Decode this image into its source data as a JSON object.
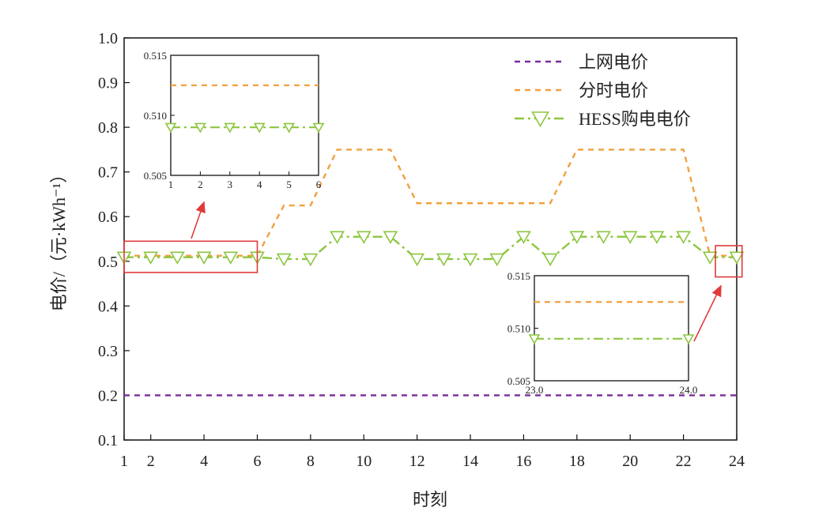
{
  "chart_data": {
    "type": "line",
    "xlabel": "时刻",
    "ylabel": "电价/（元·kWh⁻¹）",
    "xlim": [
      1,
      24
    ],
    "ylim": [
      0.1,
      1.0
    ],
    "x_ticks": [
      "1",
      "2",
      "4",
      "6",
      "8",
      "10",
      "12",
      "14",
      "16",
      "18",
      "20",
      "22",
      "24"
    ],
    "y_ticks": [
      "0.1",
      "0.2",
      "0.3",
      "0.4",
      "0.5",
      "0.6",
      "0.7",
      "0.8",
      "0.9",
      "1.0"
    ],
    "legend_position": "top-right",
    "series": [
      {
        "name": "上网电价",
        "color": "#7B2A9A",
        "style": "dashed",
        "x": [
          1,
          24
        ],
        "y": [
          0.2,
          0.2
        ]
      },
      {
        "name": "分时电价",
        "color": "#F2A03D",
        "style": "dashed",
        "x": [
          1,
          6,
          7,
          8,
          9,
          11,
          12,
          17,
          18,
          22,
          23,
          24
        ],
        "y": [
          0.5125,
          0.5125,
          0.625,
          0.625,
          0.75,
          0.75,
          0.63,
          0.63,
          0.75,
          0.75,
          0.5125,
          0.5125
        ]
      },
      {
        "name": "HESS购电电价",
        "color": "#8CC63F",
        "style": "dashdot",
        "marker": "triangle-down",
        "x": [
          1,
          2,
          3,
          4,
          5,
          6,
          7,
          8,
          9,
          10,
          11,
          12,
          13,
          14,
          15,
          16,
          17,
          18,
          19,
          20,
          21,
          22,
          23,
          24
        ],
        "y": [
          0.509,
          0.509,
          0.509,
          0.509,
          0.509,
          0.509,
          0.505,
          0.505,
          0.555,
          0.555,
          0.555,
          0.505,
          0.505,
          0.505,
          0.505,
          0.555,
          0.505,
          0.555,
          0.555,
          0.555,
          0.555,
          0.555,
          0.509,
          0.509
        ]
      }
    ],
    "insets": [
      {
        "xlim": [
          1,
          6
        ],
        "ylim": [
          0.505,
          0.515
        ],
        "x_ticks": [
          "1",
          "2",
          "3",
          "4",
          "5",
          "6"
        ],
        "y_ticks": [
          "0.505",
          "0.510",
          "0.515"
        ],
        "lines": [
          {
            "series": "分时电价",
            "y": 0.5125,
            "x": [
              1,
              6
            ]
          },
          {
            "series": "HESS购电电价",
            "y": 0.509,
            "x": [
              1,
              2,
              3,
              4,
              5,
              6
            ]
          }
        ]
      },
      {
        "xlim": [
          23.0,
          24.0
        ],
        "ylim": [
          0.505,
          0.515
        ],
        "x_ticks": [
          "23.0",
          "24.0"
        ],
        "y_ticks": [
          "0.505",
          "0.510",
          "0.515"
        ],
        "lines": [
          {
            "series": "分时电价",
            "y": 0.5125,
            "x": [
              23.0,
              24.0
            ]
          },
          {
            "series": "HESS购电电价",
            "y": 0.509,
            "x": [
              23.0,
              24.0
            ]
          }
        ]
      }
    ],
    "zoom_boxes": [
      {
        "x": [
          1,
          6
        ],
        "y": [
          0.475,
          0.545
        ]
      },
      {
        "x": [
          23.2,
          24.2
        ],
        "y": [
          0.465,
          0.535
        ]
      }
    ]
  }
}
